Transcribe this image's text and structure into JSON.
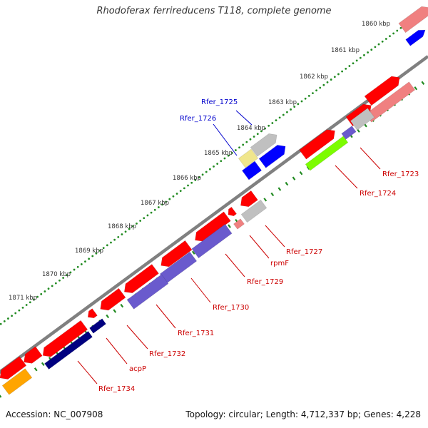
{
  "title": "Rhodoferax ferrireducens T118, complete genome",
  "footer": {
    "accession": "Accession: NC_007908",
    "summary": "Topology: circular; Length: 4,712,337 bp; Genes: 4,228"
  },
  "ruler": [
    "1860 kbp",
    "1861 kbp",
    "1862 kbp",
    "1863 kbp",
    "1864 kbp",
    "1865 kbp",
    "1866 kbp",
    "1867 kbp",
    "1868 kbp",
    "1869 kbp",
    "1870 kbp",
    "1871 kbp"
  ],
  "colors": {
    "red": "#ff0000",
    "light_red": "#f08080",
    "gray": "#c0c0c0",
    "blue": "#0000ff",
    "navy": "#000080",
    "slate": "#6a5acd",
    "khaki": "#f0e68c",
    "green": "#7cfc00",
    "orange": "#ffa500",
    "backbone": "#808080",
    "tick": "#228b22",
    "label_red": "#cc0000",
    "label_blue": "#0000cc"
  },
  "labels_outer": [
    "Rfer_1725",
    "Rfer_1726"
  ],
  "labels_inner": [
    "Rfer_1723",
    "Rfer_1724",
    "Rfer_1727",
    "rpmF",
    "Rfer_1729",
    "Rfer_1730",
    "Rfer_1731",
    "Rfer_1732",
    "acpP",
    "Rfer_1734"
  ]
}
